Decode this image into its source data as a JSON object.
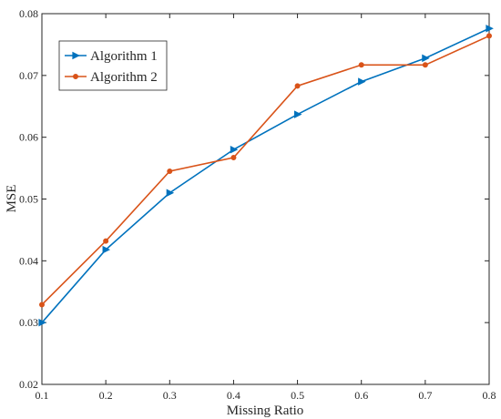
{
  "chart_data": {
    "type": "line",
    "title": "",
    "xlabel": "Missing  Ratio",
    "ylabel": "MSE",
    "xlim": [
      0.1,
      0.8
    ],
    "ylim": [
      0.02,
      0.08
    ],
    "xticks": [
      "0.1",
      "0.2",
      "0.3",
      "0.4",
      "0.5",
      "0.6",
      "0.7",
      "0.8"
    ],
    "yticks": [
      "0.02",
      "0.03",
      "0.04",
      "0.05",
      "0.06",
      "0.07",
      "0.08"
    ],
    "x": [
      0.1,
      0.2,
      0.3,
      0.4,
      0.5,
      0.6,
      0.7,
      0.8
    ],
    "grid": false,
    "legend_position": "top-left",
    "series": [
      {
        "name": "Algorithm 1",
        "color": "#0072BD",
        "marker": "right-triangle",
        "values": [
          0.03,
          0.0418,
          0.051,
          0.058,
          0.0637,
          0.069,
          0.0728,
          0.0776
        ]
      },
      {
        "name": "Algorithm 2",
        "color": "#D95319",
        "marker": "dot",
        "values": [
          0.0329,
          0.0432,
          0.0545,
          0.0567,
          0.0683,
          0.0717,
          0.0717,
          0.0764
        ]
      }
    ]
  }
}
